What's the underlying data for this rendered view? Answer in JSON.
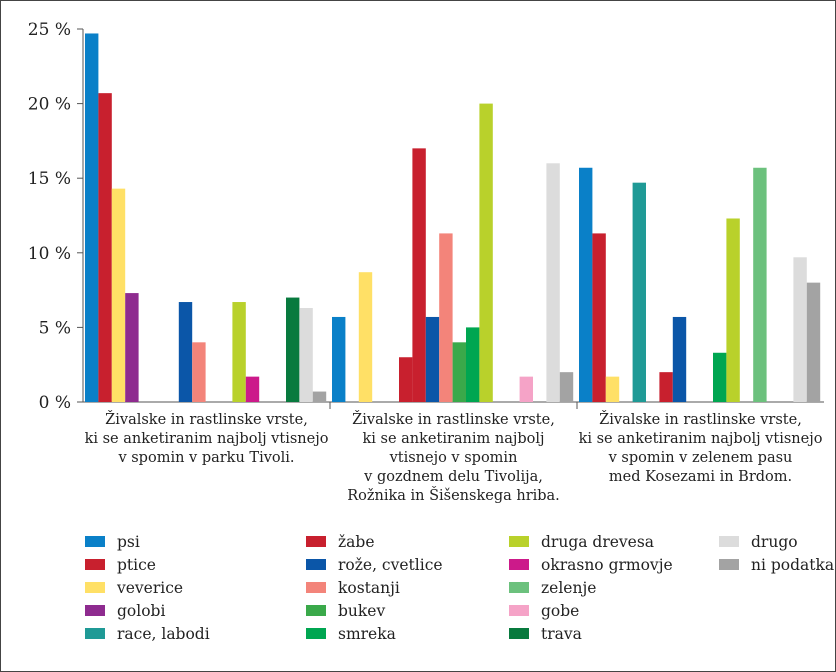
{
  "chart_data": {
    "type": "bar",
    "ylim": [
      0,
      25
    ],
    "yticks": [
      {
        "value": 0,
        "label": "0 %"
      },
      {
        "value": 5,
        "label": "5 %"
      },
      {
        "value": 10,
        "label": "10 %"
      },
      {
        "value": 15,
        "label": "15 %"
      },
      {
        "value": 20,
        "label": "20 %"
      },
      {
        "value": 25,
        "label": "25 %"
      }
    ],
    "categories": [
      [
        "Živalske in rastlinske vrste,",
        "ki se anketiranim najbolj vtisnejo",
        "v spomin v parku Tivoli."
      ],
      [
        "Živalske in rastlinske vrste,",
        "ki se anketiranim najbolj",
        "vtisnejo v spomin",
        "v gozdnem delu Tivolija,",
        "Rožnika in Šišenskega hriba."
      ],
      [
        "Živalske in rastlinske vrste,",
        "ki se anketiranim najbolj vtisnejo",
        "v spomin v zelenem pasu",
        "med Kosezami in Brdom."
      ]
    ],
    "series": [
      {
        "name": "psi",
        "color": "#0a80c8",
        "values": [
          24.7,
          5.7,
          15.7
        ]
      },
      {
        "name": "ptice",
        "color": "#c8202e",
        "values": [
          20.7,
          0,
          11.3
        ]
      },
      {
        "name": "veverice",
        "color": "#ffe066",
        "values": [
          14.3,
          8.7,
          1.7
        ]
      },
      {
        "name": "golobi",
        "color": "#8e2b8f",
        "values": [
          7.3,
          0,
          0
        ]
      },
      {
        "name": "race, labodi",
        "color": "#1f9a96",
        "values": [
          0,
          0,
          14.7
        ]
      },
      {
        "name": "žabe",
        "color": "#c8202e",
        "values": [
          0,
          3.0,
          0
        ]
      },
      {
        "name": "žabe (2)",
        "color": "#c8202e",
        "values": [
          0,
          17.0,
          2.0
        ]
      },
      {
        "name": "rože, cvetlice",
        "color": "#0b56a8",
        "values": [
          6.7,
          5.7,
          5.7
        ]
      },
      {
        "name": "kostanji",
        "color": "#f3847a",
        "values": [
          4.0,
          11.3,
          0
        ]
      },
      {
        "name": "bukev",
        "color": "#3aa94a",
        "values": [
          0,
          4.0,
          0
        ]
      },
      {
        "name": "smreka",
        "color": "#00a651",
        "values": [
          0,
          5.0,
          3.3
        ]
      },
      {
        "name": "druga drevesa",
        "color": "#b9d12b",
        "values": [
          6.7,
          20.0,
          12.3
        ]
      },
      {
        "name": "okrasno grmovje",
        "color": "#cc1a8a",
        "values": [
          1.7,
          0,
          0
        ]
      },
      {
        "name": "zelenje",
        "color": "#6cc17d",
        "values": [
          0,
          0,
          15.7
        ]
      },
      {
        "name": "gobe",
        "color": "#f5a3c7",
        "values": [
          0,
          1.7,
          0
        ]
      },
      {
        "name": "trava",
        "color": "#087a3e",
        "values": [
          7.0,
          0,
          0
        ]
      },
      {
        "name": "drugo",
        "color": "#dcdcdc",
        "values": [
          6.3,
          16.0,
          9.7
        ]
      },
      {
        "name": "ni podatka",
        "color": "#a3a3a3",
        "values": [
          0.7,
          2.0,
          8.0
        ]
      }
    ],
    "legend": {
      "placement": "bottom",
      "columns": [
        [
          {
            "name": "psi",
            "color": "#0a80c8"
          },
          {
            "name": "ptice",
            "color": "#c8202e"
          },
          {
            "name": "veverice",
            "color": "#ffe066"
          },
          {
            "name": "golobi",
            "color": "#8e2b8f"
          },
          {
            "name": "race, labodi",
            "color": "#1f9a96"
          }
        ],
        [
          {
            "name": "žabe",
            "color": "#c8202e"
          },
          {
            "name": "rože, cvetlice",
            "color": "#0b56a8"
          },
          {
            "name": "kostanji",
            "color": "#f3847a"
          },
          {
            "name": "bukev",
            "color": "#3aa94a"
          },
          {
            "name": "smreka",
            "color": "#00a651"
          }
        ],
        [
          {
            "name": "druga drevesa",
            "color": "#b9d12b"
          },
          {
            "name": "okrasno grmovje",
            "color": "#cc1a8a"
          },
          {
            "name": "zelenje",
            "color": "#6cc17d"
          },
          {
            "name": "gobe",
            "color": "#f5a3c7"
          },
          {
            "name": "trava",
            "color": "#087a3e"
          }
        ],
        [
          {
            "name": "drugo",
            "color": "#dcdcdc"
          },
          {
            "name": "ni podatka",
            "color": "#a3a3a3"
          }
        ]
      ]
    }
  }
}
